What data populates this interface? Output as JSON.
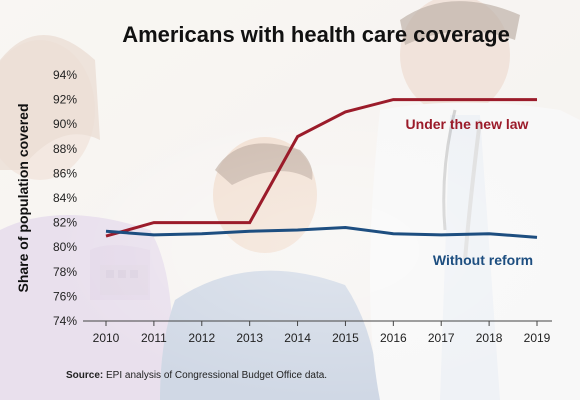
{
  "chart_data": {
    "type": "line",
    "title": "Americans with health care coverage",
    "ylabel": "Share of population covered",
    "xlabel": "",
    "x": [
      2010,
      2011,
      2012,
      2013,
      2014,
      2015,
      2016,
      2017,
      2018,
      2019
    ],
    "x_tick_labels": [
      "2010",
      "2011",
      "2012",
      "2013",
      "2014",
      "2015",
      "2016",
      "2017",
      "2018",
      "2019"
    ],
    "ylim": [
      74,
      94
    ],
    "y_ticks": [
      74,
      76,
      78,
      80,
      82,
      84,
      86,
      88,
      90,
      92,
      94
    ],
    "y_tick_labels": [
      "74%",
      "76%",
      "78%",
      "80%",
      "82%",
      "84%",
      "86%",
      "88%",
      "90%",
      "92%",
      "94%"
    ],
    "grid": false,
    "series": [
      {
        "name": "Under the new law",
        "color": "#9b1b2a",
        "points": [
          [
            2010,
            80.9
          ],
          [
            2011,
            82.0
          ],
          [
            2012,
            82.0
          ],
          [
            2013,
            82.0
          ],
          [
            2014,
            89.0
          ],
          [
            2015,
            91.0
          ],
          [
            2016,
            92.0
          ],
          [
            2017,
            92.0
          ],
          [
            2018,
            92.0
          ],
          [
            2019,
            92.0
          ]
        ]
      },
      {
        "name": "Without reform",
        "color": "#1d4e80",
        "points": [
          [
            2010,
            81.3
          ],
          [
            2011,
            81.0
          ],
          [
            2012,
            81.1
          ],
          [
            2013,
            81.3
          ],
          [
            2014,
            81.4
          ],
          [
            2015,
            81.6
          ],
          [
            2016,
            81.1
          ],
          [
            2017,
            81.0
          ],
          [
            2018,
            81.1
          ],
          [
            2019,
            80.8
          ]
        ]
      }
    ]
  },
  "source": {
    "label": "Source:",
    "text": " EPI analysis of Congressional Budget Office data."
  }
}
